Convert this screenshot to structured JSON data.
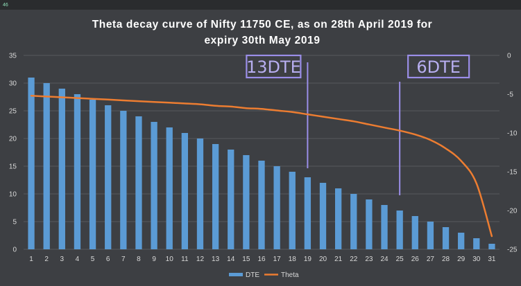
{
  "corner_label": "46",
  "chart_data": {
    "type": "bar+line",
    "title_lines": [
      "Theta decay curve of Nifty 11750 CE, as on 28th April 2019 for",
      "expiry 30th May 2019"
    ],
    "categories": [
      1,
      2,
      3,
      4,
      5,
      6,
      7,
      8,
      9,
      10,
      11,
      12,
      13,
      14,
      15,
      16,
      17,
      18,
      19,
      20,
      21,
      22,
      23,
      24,
      25,
      26,
      27,
      28,
      29,
      30,
      31
    ],
    "series": [
      {
        "name": "DTE",
        "type": "bar",
        "axis": "left",
        "color": "#5b9bd5",
        "values": [
          31,
          30,
          29,
          28,
          27,
          26,
          25,
          24,
          23,
          22,
          21,
          20,
          19,
          18,
          17,
          16,
          15,
          14,
          13,
          12,
          11,
          10,
          9,
          8,
          7,
          6,
          5,
          4,
          3,
          2,
          1
        ]
      },
      {
        "name": "Theta",
        "type": "line",
        "axis": "right",
        "color": "#ed7d31",
        "values": [
          -5.2,
          -5.3,
          -5.4,
          -5.5,
          -5.6,
          -5.7,
          -5.8,
          -5.9,
          -6.0,
          -6.1,
          -6.2,
          -6.3,
          -6.5,
          -6.6,
          -6.8,
          -6.9,
          -7.1,
          -7.3,
          -7.6,
          -7.9,
          -8.2,
          -8.5,
          -8.9,
          -9.3,
          -9.7,
          -10.2,
          -10.9,
          -12.0,
          -13.6,
          -16.5,
          -23.3
        ]
      }
    ],
    "y_left": {
      "min": 0,
      "max": 35,
      "ticks": [
        0,
        5,
        10,
        15,
        20,
        25,
        30,
        35
      ]
    },
    "y_right": {
      "min": -25,
      "max": 0,
      "ticks": [
        0,
        -5,
        -10,
        -15,
        -20,
        -25
      ]
    },
    "grid": true,
    "legend": {
      "position": "bottom",
      "entries": [
        "DTE",
        "Theta"
      ]
    },
    "annotations": [
      {
        "label": "13DTE",
        "category": 19,
        "color": "#9b8ee8"
      },
      {
        "label": "6DTE",
        "category": 25,
        "color": "#9b8ee8"
      }
    ]
  }
}
